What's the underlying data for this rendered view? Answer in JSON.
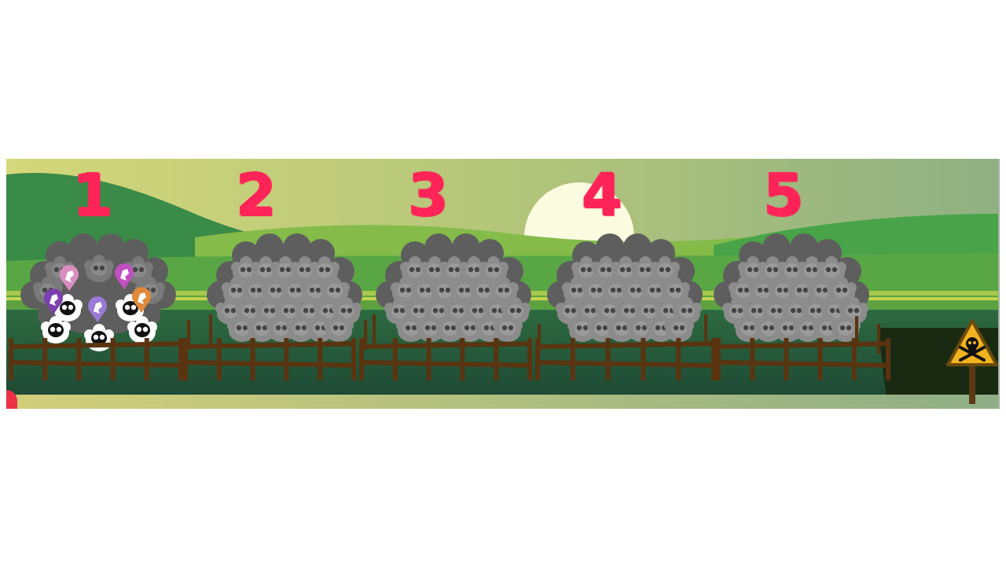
{
  "game": {
    "pens": [
      {
        "number": "1",
        "status": "active"
      },
      {
        "number": "2",
        "status": "locked"
      },
      {
        "number": "3",
        "status": "locked"
      },
      {
        "number": "4",
        "status": "locked"
      },
      {
        "number": "5",
        "status": "locked"
      }
    ],
    "colors": {
      "number": "#ff2458",
      "locked_flock": "#8c8c8c",
      "balloon_pink": "#d98ec0",
      "balloon_magenta": "#c04fc0",
      "balloon_purple": "#7d3fb0",
      "balloon_lavender": "#9a7ad6",
      "balloon_orange": "#e08a3a",
      "fence": "#5a3410",
      "sign": "#f2b31f"
    },
    "icons": {
      "hazard_sign": "skull-crossbones-icon",
      "sun": "sun-icon",
      "record_dot": "record-dot-icon"
    },
    "caption": "·· ···· ··· ·· ······ ···"
  }
}
